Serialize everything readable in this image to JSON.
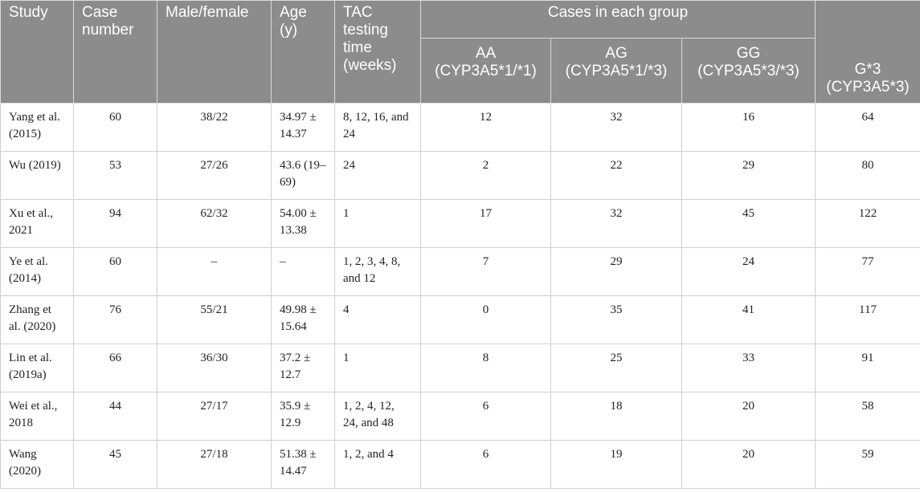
{
  "headers": {
    "study": "Study",
    "case_number": "Case number",
    "male_female": "Male/female",
    "age": "Age (y)",
    "tac_time": "TAC testing time (weeks)",
    "cases_group": "Cases in each group",
    "aa": "AA (CYP3A5*1/*1)",
    "ag": "AG (CYP3A5*1/*3)",
    "gg": "GG (CYP3A5*3/*3)",
    "g3": "G*3 (CYP3A5*3)"
  },
  "rows": [
    {
      "study": "Yang et al. (2015)",
      "n": "60",
      "mf": "38/22",
      "age": "34.97 ± 14.37",
      "tac": "8, 12, 16, and 24",
      "aa": "12",
      "ag": "32",
      "gg": "16",
      "g3": "64"
    },
    {
      "study": "Wu (2019)",
      "n": "53",
      "mf": "27/26",
      "age": "43.6 (19–69)",
      "tac": "24",
      "aa": "2",
      "ag": "22",
      "gg": "29",
      "g3": "80"
    },
    {
      "study": "Xu et al., 2021",
      "n": "94",
      "mf": "62/32",
      "age": "54.00 ± 13.38",
      "tac": "1",
      "aa": "17",
      "ag": "32",
      "gg": "45",
      "g3": "122"
    },
    {
      "study": "Ye et al. (2014)",
      "n": "60",
      "mf": "–",
      "age": "–",
      "tac": "1, 2, 3, 4, 8, and 12",
      "aa": "7",
      "ag": "29",
      "gg": "24",
      "g3": "77"
    },
    {
      "study": "Zhang et al. (2020)",
      "n": "76",
      "mf": "55/21",
      "age": "49.98 ± 15.64",
      "tac": "4",
      "aa": "0",
      "ag": "35",
      "gg": "41",
      "g3": "117"
    },
    {
      "study": "Lin et al. (2019a)",
      "n": "66",
      "mf": "36/30",
      "age": "37.2 ± 12.7",
      "tac": "1",
      "aa": "8",
      "ag": "25",
      "gg": "33",
      "g3": "91"
    },
    {
      "study": "Wei et al., 2018",
      "n": "44",
      "mf": "27/17",
      "age": "35.9 ± 12.9",
      "tac": "1, 2, 4, 12, 24, and 48",
      "aa": "6",
      "ag": "18",
      "gg": "20",
      "g3": "58"
    },
    {
      "study": "Wang (2020)",
      "n": "45",
      "mf": "27/18",
      "age": "51.38 ± 14.47",
      "tac": "1, 2, and 4",
      "aa": "6",
      "ag": "19",
      "gg": "20",
      "g3": "59"
    }
  ]
}
